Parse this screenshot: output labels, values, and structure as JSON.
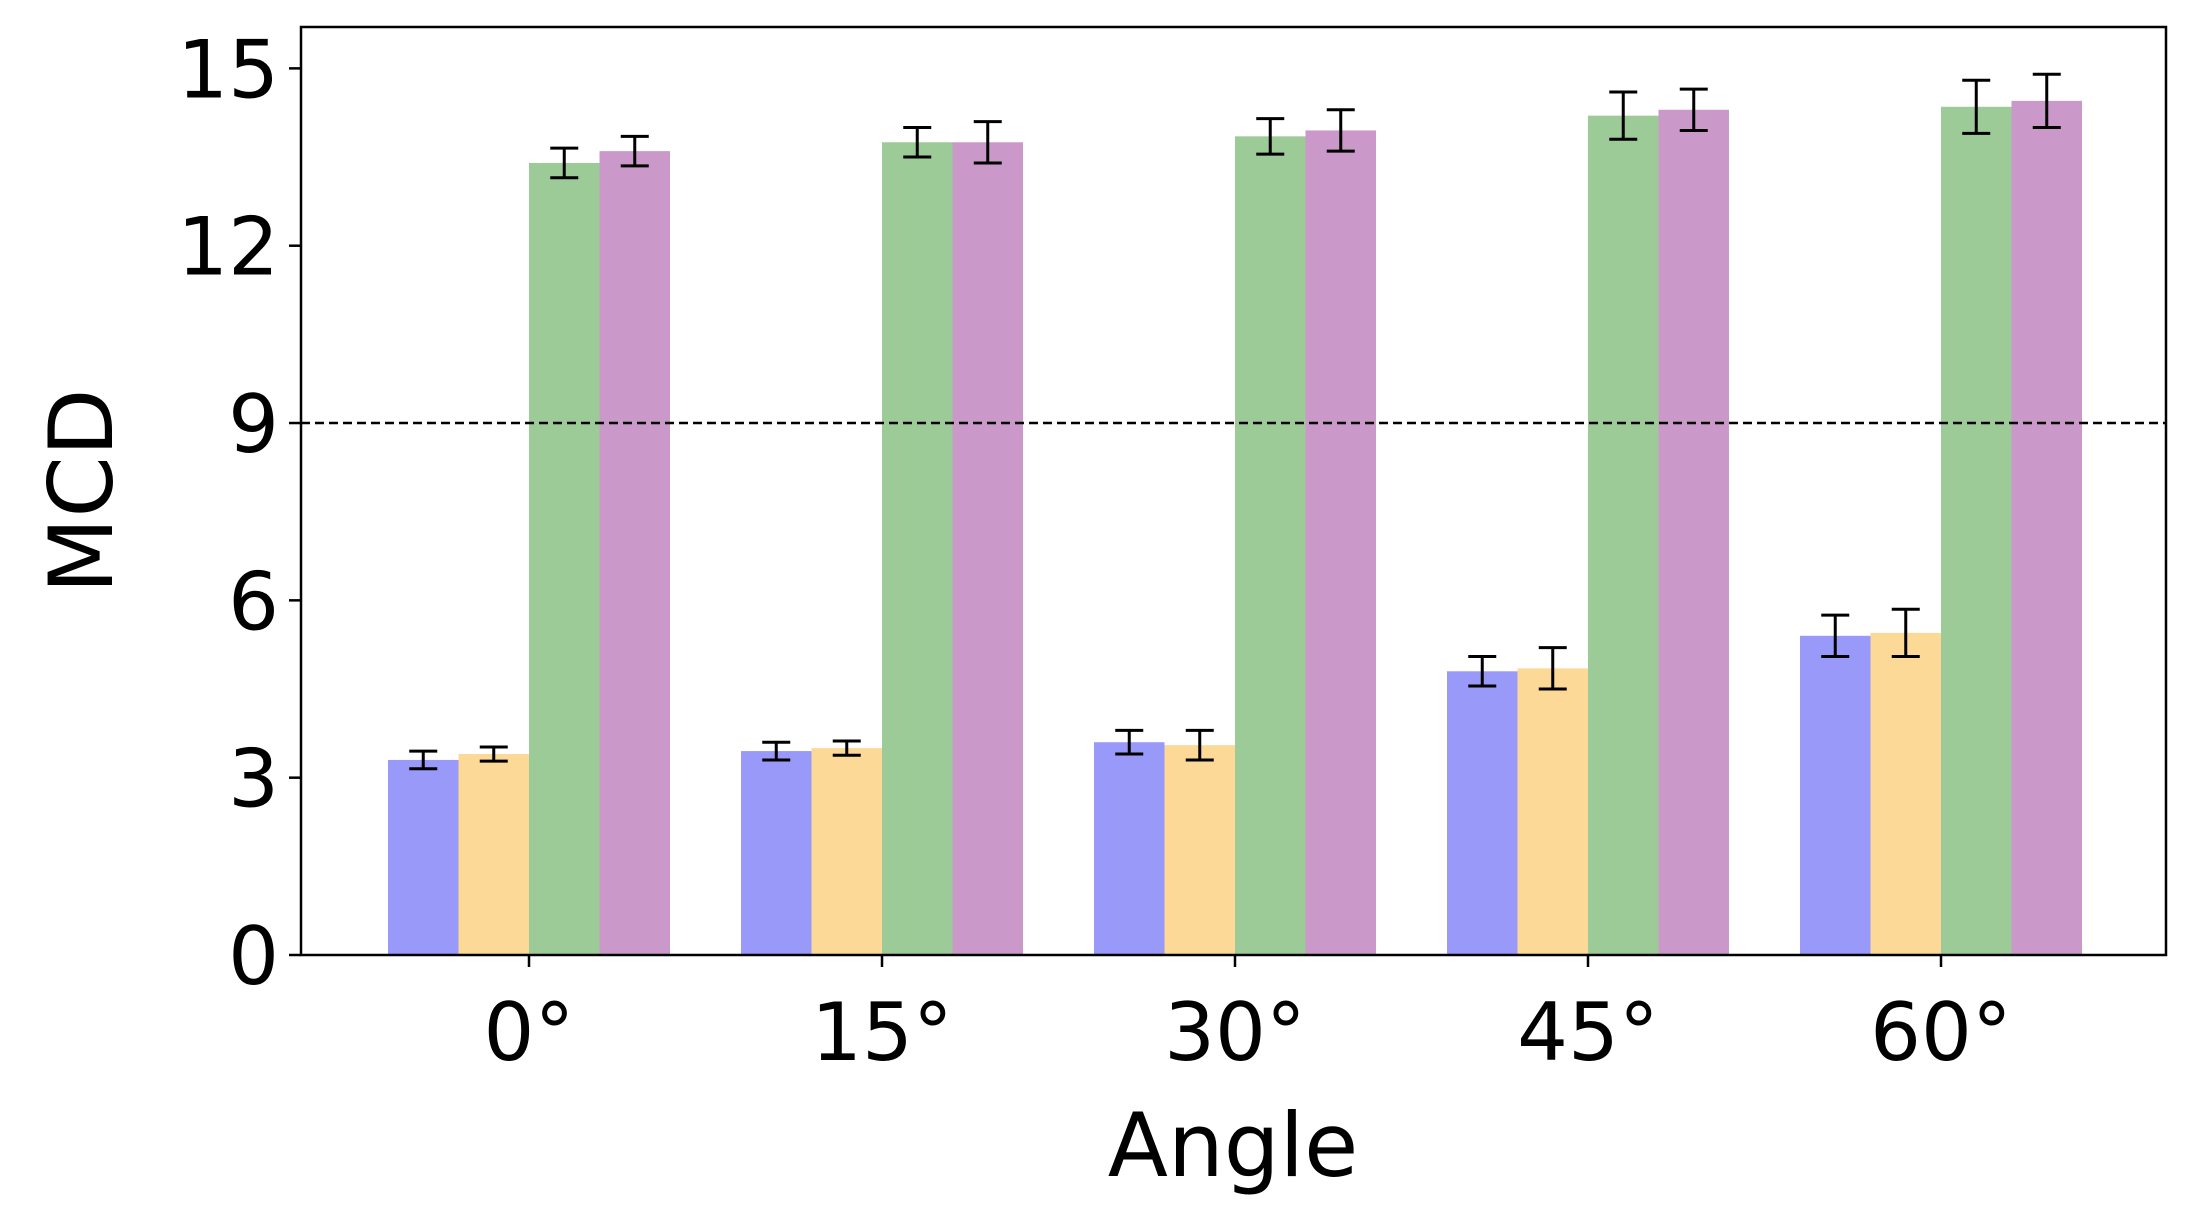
{
  "chart_data": {
    "type": "bar",
    "title": "",
    "xlabel": "Angle",
    "ylabel": "MCD",
    "categories": [
      "0°",
      "15°",
      "30°",
      "45°",
      "60°"
    ],
    "ylim": [
      0,
      15.7
    ],
    "yticks": [
      0,
      3,
      6,
      9,
      12,
      15
    ],
    "ytick_labels": [
      "0",
      "3",
      "6",
      "9",
      "12",
      "15"
    ],
    "reference_line": {
      "y": 9,
      "style": "dashed",
      "color": "#000000"
    },
    "legend": null,
    "series": [
      {
        "name": "series-1",
        "color": "#9999fa",
        "values": [
          3.3,
          3.45,
          3.6,
          4.8,
          5.4
        ],
        "errors": [
          0.15,
          0.15,
          0.2,
          0.25,
          0.35
        ]
      },
      {
        "name": "series-2",
        "color": "#fcd997",
        "values": [
          3.4,
          3.5,
          3.55,
          4.85,
          5.45
        ],
        "errors": [
          0.12,
          0.12,
          0.25,
          0.35,
          0.4
        ]
      },
      {
        "name": "series-3",
        "color": "#9dcb98",
        "values": [
          13.4,
          13.75,
          13.85,
          14.2,
          14.35
        ],
        "errors": [
          0.25,
          0.25,
          0.3,
          0.4,
          0.45
        ]
      },
      {
        "name": "series-4",
        "color": "#ca99c9",
        "values": [
          13.6,
          13.75,
          13.95,
          14.3,
          14.45
        ],
        "errors": [
          0.25,
          0.35,
          0.35,
          0.35,
          0.45
        ]
      }
    ]
  }
}
